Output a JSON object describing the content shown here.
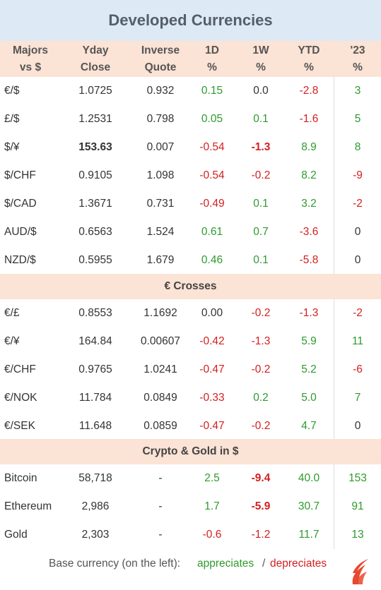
{
  "title": "Developed Currencies",
  "headers": {
    "pair": [
      "Majors",
      "vs $"
    ],
    "close": [
      "Yday",
      "Close"
    ],
    "inverse": [
      "Inverse",
      "Quote"
    ],
    "d1": [
      "1D",
      "%"
    ],
    "w1": [
      "1W",
      "%"
    ],
    "ytd": [
      "YTD",
      "%"
    ],
    "y23": [
      "'23",
      "%"
    ]
  },
  "sections": {
    "crosses": "€ Crosses",
    "crypto": "Crypto & Gold in $"
  },
  "majors": [
    {
      "pair": "€/$",
      "close": "1.0725",
      "inverse": "0.932",
      "d1": "0.15",
      "w1": "0.0",
      "ytd": "-2.8",
      "y23": "3"
    },
    {
      "pair": "£/$",
      "close": "1.2531",
      "inverse": "0.798",
      "d1": "0.05",
      "w1": "0.1",
      "ytd": "-1.6",
      "y23": "5"
    },
    {
      "pair": "$/¥",
      "close": "153.63",
      "inverse": "0.007",
      "d1": "-0.54",
      "w1": "-1.3",
      "ytd": "8.9",
      "y23": "8"
    },
    {
      "pair": "$/CHF",
      "close": "0.9105",
      "inverse": "1.098",
      "d1": "-0.54",
      "w1": "-0.2",
      "ytd": "8.2",
      "y23": "-9"
    },
    {
      "pair": "$/CAD",
      "close": "1.3671",
      "inverse": "0.731",
      "d1": "-0.49",
      "w1": "0.1",
      "ytd": "3.2",
      "y23": "-2"
    },
    {
      "pair": "AUD/$",
      "close": "0.6563",
      "inverse": "1.524",
      "d1": "0.61",
      "w1": "0.7",
      "ytd": "-3.6",
      "y23": "0"
    },
    {
      "pair": "NZD/$",
      "close": "0.5955",
      "inverse": "1.679",
      "d1": "0.46",
      "w1": "0.1",
      "ytd": "-5.8",
      "y23": "0"
    }
  ],
  "crosses": [
    {
      "pair": "€/£",
      "close": "0.8553",
      "inverse": "1.1692",
      "d1": "0.00",
      "w1": "-0.2",
      "ytd": "-1.3",
      "y23": "-2"
    },
    {
      "pair": "€/¥",
      "close": "164.84",
      "inverse": "0.00607",
      "d1": "-0.42",
      "w1": "-1.3",
      "ytd": "5.9",
      "y23": "11"
    },
    {
      "pair": "€/CHF",
      "close": "0.9765",
      "inverse": "1.0241",
      "d1": "-0.47",
      "w1": "-0.2",
      "ytd": "5.2",
      "y23": "-6"
    },
    {
      "pair": "€/NOK",
      "close": "11.784",
      "inverse": "0.0849",
      "d1": "-0.33",
      "w1": "0.2",
      "ytd": "5.0",
      "y23": "7"
    },
    {
      "pair": "€/SEK",
      "close": "11.648",
      "inverse": "0.0859",
      "d1": "-0.47",
      "w1": "-0.2",
      "ytd": "4.7",
      "y23": "0"
    }
  ],
  "crypto": [
    {
      "pair": "Bitcoin",
      "close": "58,718",
      "inverse": "-",
      "d1": "2.5",
      "w1": "-9.4",
      "ytd": "40.0",
      "y23": "153"
    },
    {
      "pair": "Ethereum",
      "close": "2,986",
      "inverse": "-",
      "d1": "1.7",
      "w1": "-5.9",
      "ytd": "30.7",
      "y23": "91"
    },
    {
      "pair": "Gold",
      "close": "2,303",
      "inverse": "-",
      "d1": "-0.6",
      "w1": "-1.2",
      "ytd": "11.7",
      "y23": "13"
    }
  ],
  "footer": {
    "prefix": "Base currency (on the left):",
    "appreciates": "appreciates",
    "slash": "/",
    "depreciates": "depreciates"
  },
  "colors": {
    "positive": "#2e9a2e",
    "negative": "#d32020",
    "header_bg": "#fbe3d5",
    "title_bg": "#dde9f5"
  },
  "icons": {
    "logo": "flame-logo-icon"
  }
}
